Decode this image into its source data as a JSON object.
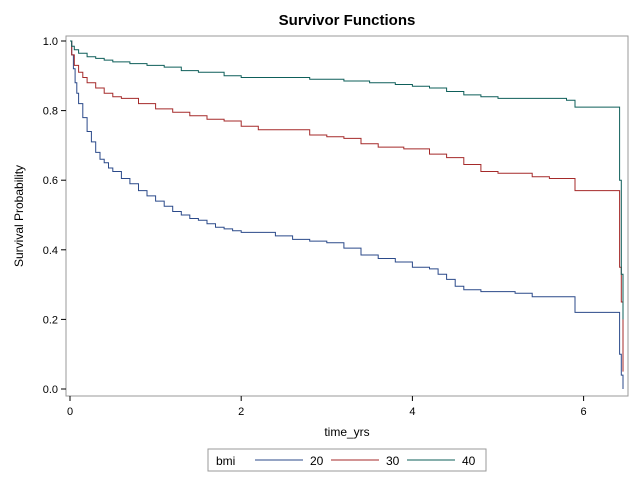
{
  "chart_data": {
    "type": "line",
    "step": true,
    "title": "Survivor Functions",
    "xlabel": "time_yrs",
    "ylabel": "Survival Probability",
    "xlim": [
      0,
      6.5
    ],
    "ylim": [
      0,
      1.0
    ],
    "xticks": [
      "0",
      "2",
      "4",
      "6"
    ],
    "yticks": [
      "0.0",
      "0.2",
      "0.4",
      "0.6",
      "0.8",
      "1.0"
    ],
    "grid": false,
    "legend": {
      "title": "bmi",
      "placement": "bottom"
    },
    "series": [
      {
        "name": "20",
        "color": "#2b4a8a",
        "x": [
          0,
          0.02,
          0.04,
          0.06,
          0.08,
          0.1,
          0.15,
          0.2,
          0.25,
          0.3,
          0.35,
          0.4,
          0.45,
          0.5,
          0.6,
          0.7,
          0.8,
          0.9,
          1.0,
          1.1,
          1.2,
          1.3,
          1.4,
          1.5,
          1.6,
          1.7,
          1.8,
          1.9,
          2.0,
          2.2,
          2.4,
          2.6,
          2.8,
          3.0,
          3.2,
          3.4,
          3.6,
          3.8,
          4.0,
          4.2,
          4.3,
          4.4,
          4.5,
          4.6,
          4.8,
          5.0,
          5.2,
          5.4,
          5.6,
          5.9,
          6.0,
          6.4,
          6.42,
          6.44,
          6.46
        ],
        "y": [
          1.0,
          0.96,
          0.92,
          0.88,
          0.85,
          0.82,
          0.78,
          0.74,
          0.71,
          0.68,
          0.66,
          0.65,
          0.635,
          0.625,
          0.605,
          0.59,
          0.57,
          0.555,
          0.54,
          0.525,
          0.51,
          0.5,
          0.49,
          0.485,
          0.475,
          0.465,
          0.46,
          0.455,
          0.45,
          0.45,
          0.44,
          0.43,
          0.425,
          0.42,
          0.405,
          0.385,
          0.375,
          0.365,
          0.35,
          0.345,
          0.33,
          0.315,
          0.295,
          0.285,
          0.28,
          0.28,
          0.275,
          0.265,
          0.265,
          0.22,
          0.22,
          0.22,
          0.1,
          0.04,
          0.0
        ]
      },
      {
        "name": "30",
        "color": "#a52a2a",
        "x": [
          0,
          0.02,
          0.05,
          0.1,
          0.15,
          0.2,
          0.3,
          0.4,
          0.5,
          0.6,
          0.8,
          1.0,
          1.2,
          1.4,
          1.6,
          1.8,
          2.0,
          2.2,
          2.5,
          2.8,
          3.0,
          3.2,
          3.4,
          3.6,
          3.9,
          4.2,
          4.4,
          4.6,
          4.8,
          5.0,
          5.2,
          5.4,
          5.6,
          5.9,
          6.0,
          6.4,
          6.42,
          6.44,
          6.46
        ],
        "y": [
          1.0,
          0.96,
          0.93,
          0.91,
          0.895,
          0.88,
          0.865,
          0.85,
          0.84,
          0.835,
          0.82,
          0.805,
          0.795,
          0.785,
          0.775,
          0.77,
          0.755,
          0.745,
          0.745,
          0.73,
          0.725,
          0.72,
          0.705,
          0.695,
          0.69,
          0.675,
          0.665,
          0.645,
          0.625,
          0.62,
          0.62,
          0.61,
          0.605,
          0.57,
          0.57,
          0.57,
          0.35,
          0.25,
          0.05
        ]
      },
      {
        "name": "40",
        "color": "#0e5f5a",
        "x": [
          0,
          0.02,
          0.05,
          0.1,
          0.2,
          0.3,
          0.4,
          0.5,
          0.7,
          0.9,
          1.1,
          1.3,
          1.5,
          1.8,
          2.0,
          2.4,
          2.8,
          3.2,
          3.5,
          3.8,
          4.0,
          4.2,
          4.4,
          4.6,
          4.8,
          5.0,
          5.4,
          5.8,
          5.9,
          6.0,
          6.4,
          6.42,
          6.44,
          6.46
        ],
        "y": [
          1.0,
          0.985,
          0.975,
          0.965,
          0.955,
          0.95,
          0.945,
          0.94,
          0.935,
          0.93,
          0.925,
          0.915,
          0.91,
          0.9,
          0.895,
          0.895,
          0.89,
          0.885,
          0.88,
          0.875,
          0.87,
          0.865,
          0.855,
          0.845,
          0.84,
          0.835,
          0.835,
          0.83,
          0.81,
          0.81,
          0.81,
          0.6,
          0.33,
          0.2
        ]
      }
    ]
  }
}
